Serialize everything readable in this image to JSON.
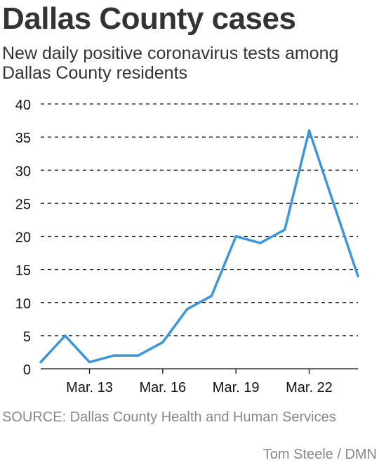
{
  "title": "Dallas County cases",
  "subtitle": "New daily positive coronavirus tests among Dallas County residents",
  "source": "SOURCE: Dallas County Health and Human Services",
  "credit": "Tom Steele / DMN",
  "chart_data": {
    "type": "line",
    "x": [
      "Mar. 11",
      "Mar. 12",
      "Mar. 13",
      "Mar. 14",
      "Mar. 15",
      "Mar. 16",
      "Mar. 17",
      "Mar. 18",
      "Mar. 19",
      "Mar. 20",
      "Mar. 21",
      "Mar. 22",
      "Mar. 23",
      "Mar. 24"
    ],
    "series": [
      {
        "values": [
          1,
          5,
          1,
          2,
          2,
          4,
          9,
          11,
          20,
          19,
          21,
          36,
          25,
          14
        ],
        "color": "#3d96d9"
      }
    ],
    "x_tick_labels": [
      "Mar. 13",
      "Mar. 16",
      "Mar. 19",
      "Mar. 22"
    ],
    "y_ticks": [
      "0",
      "5",
      "10",
      "15",
      "20",
      "25",
      "30",
      "35",
      "40"
    ],
    "ylim": [
      0,
      40
    ],
    "grid": "horizontal dashed",
    "xlabel": "",
    "ylabel": ""
  }
}
